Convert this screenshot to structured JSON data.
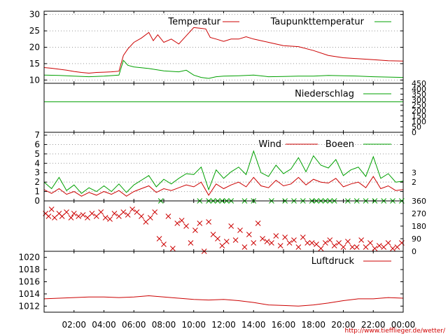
{
  "colors": {
    "red": "#cc0000",
    "green": "#00a000",
    "grid": "#999999",
    "url": "#d00000"
  },
  "chart_data": {
    "x_ticks": [
      "02:00",
      "04:00",
      "06:00",
      "08:00",
      "10:00",
      "12:00",
      "14:00",
      "16:00",
      "18:00",
      "20:00",
      "22:00",
      "00:00"
    ],
    "source_url": "http://www.tiefflieger.de/wetter/",
    "panels": [
      {
        "id": "temperature",
        "type": "line",
        "y_ticks": [
          10,
          15,
          20,
          25,
          30
        ],
        "ylim": [
          9,
          31
        ],
        "grid": true,
        "series": [
          {
            "name": "Temperatur",
            "color": "#cc0000",
            "x": [
              0,
              0.5,
              1,
              1.5,
              2,
              2.5,
              3,
              3.5,
              4,
              4.5,
              5,
              5.3,
              5.6,
              6,
              6.5,
              7,
              7.3,
              7.6,
              8,
              8.5,
              9,
              9.5,
              10,
              10.4,
              10.8,
              11.1,
              11.5,
              12,
              12.5,
              13,
              13.5,
              14,
              14.5,
              15,
              16,
              17,
              18,
              19,
              20,
              21,
              22,
              23,
              24
            ],
            "y": [
              13.8,
              13.6,
              13.3,
              13,
              12.6,
              12.3,
              12.1,
              12.3,
              12.4,
              12.5,
              12.7,
              17.5,
              19.5,
              21.5,
              22.8,
              24.5,
              22,
              23.8,
              21.5,
              22.5,
              21,
              23.5,
              26,
              25.8,
              25.6,
              23,
              22.5,
              21.8,
              22.5,
              22.5,
              23.2,
              22.5,
              22,
              21.5,
              20.5,
              20.2,
              19,
              17.5,
              16.8,
              16.5,
              16.2,
              15.9,
              15.8
            ]
          },
          {
            "name": "Taupunkttemperatur",
            "color": "#00a000",
            "x": [
              0,
              1,
              2,
              3,
              4,
              5,
              5.3,
              5.6,
              6,
              7,
              8,
              9,
              9.5,
              10,
              10.5,
              11,
              11.5,
              12,
              13,
              14,
              15,
              16,
              17,
              18,
              19,
              20,
              21,
              22,
              23,
              24
            ],
            "y": [
              11.5,
              11.4,
              11.2,
              11,
              11.2,
              11.5,
              16,
              14.5,
              14,
              13.5,
              12.8,
              12.5,
              13,
              11.5,
              10.8,
              10.5,
              11,
              11.2,
              11.3,
              11.5,
              11,
              11.1,
              11.2,
              11.2,
              11.4,
              11.3,
              11.2,
              11,
              10.9,
              10.8
            ]
          }
        ]
      },
      {
        "id": "precipitation",
        "type": "line",
        "y_ticks_right": [
          0,
          50,
          100,
          150,
          200,
          250,
          300,
          350,
          400,
          450
        ],
        "ylim": [
          0,
          450
        ],
        "series": [
          {
            "name": "Niederschlag",
            "color": "#00a000",
            "x": [
              0,
              24
            ],
            "y": [
              280,
              280
            ]
          }
        ]
      },
      {
        "id": "wind",
        "type": "line",
        "y_ticks": [
          0,
          1,
          2,
          3,
          4,
          5,
          6,
          7
        ],
        "y_ticks_right": [
          2,
          3
        ],
        "ylim": [
          0,
          7.3
        ],
        "grid": true,
        "series": [
          {
            "name": "Wind",
            "color": "#cc0000",
            "x": [
              0,
              0.5,
              1,
              1.5,
              2,
              2.5,
              3,
              3.5,
              4,
              4.5,
              5,
              5.5,
              6,
              6.5,
              7,
              7.5,
              8,
              8.5,
              9,
              9.5,
              10,
              10.5,
              11,
              11.5,
              12,
              12.5,
              13,
              13.5,
              14,
              14.5,
              15,
              15.5,
              16,
              16.5,
              17,
              17.5,
              18,
              18.5,
              19,
              19.5,
              20,
              20.5,
              21,
              21.5,
              22,
              22.5,
              23,
              23.5,
              24
            ],
            "y": [
              1.2,
              0.8,
              1.3,
              0.7,
              1.0,
              0.5,
              0.9,
              0.6,
              1.0,
              0.7,
              1.1,
              0.5,
              1.0,
              1.3,
              1.6,
              0.9,
              1.3,
              1.1,
              1.4,
              1.7,
              1.5,
              2.0,
              0.6,
              1.8,
              1.3,
              1.7,
              2.0,
              1.5,
              2.5,
              1.6,
              1.4,
              2.2,
              1.6,
              1.8,
              2.5,
              1.7,
              2.3,
              2.0,
              1.9,
              2.4,
              1.5,
              1.8,
              2.0,
              1.4,
              2.6,
              1.3,
              1.6,
              1.1,
              1.2
            ]
          },
          {
            "name": "Boeen",
            "color": "#00a000",
            "x": [
              0,
              0.5,
              1,
              1.5,
              2,
              2.5,
              3,
              3.5,
              4,
              4.5,
              5,
              5.5,
              6,
              6.5,
              7,
              7.5,
              8,
              8.5,
              9,
              9.5,
              10,
              10.5,
              11,
              11.5,
              12,
              12.5,
              13,
              13.5,
              14,
              14.5,
              15,
              15.5,
              16,
              16.5,
              17,
              17.5,
              18,
              18.5,
              19,
              19.5,
              20,
              20.5,
              21,
              21.5,
              22,
              22.5,
              23,
              23.5,
              24
            ],
            "y": [
              2.0,
              1.3,
              2.5,
              1.1,
              1.7,
              0.8,
              1.4,
              1.0,
              1.6,
              1.0,
              1.8,
              0.9,
              1.7,
              2.2,
              2.7,
              1.5,
              2.3,
              1.8,
              2.4,
              2.9,
              2.8,
              3.6,
              1.2,
              3.3,
              2.4,
              3.1,
              3.6,
              2.8,
              5.3,
              3.0,
              2.6,
              3.8,
              2.9,
              3.4,
              4.6,
              3.1,
              4.8,
              3.8,
              3.5,
              4.4,
              2.7,
              3.3,
              3.6,
              2.6,
              4.7,
              2.4,
              2.9,
              2.0,
              2.1
            ]
          }
        ]
      },
      {
        "id": "wind_direction",
        "type": "scatter",
        "y_ticks_right": [
          0,
          90,
          180,
          270,
          360
        ],
        "ylim": [
          0,
          360
        ],
        "series": [
          {
            "name": "",
            "color": "#cc0000",
            "marker": "x",
            "x": [
              0.1,
              0.3,
              0.5,
              0.7,
              1.0,
              1.2,
              1.5,
              1.8,
              2.0,
              2.3,
              2.6,
              2.9,
              3.2,
              3.5,
              3.8,
              4.1,
              4.4,
              4.7,
              5.0,
              5.3,
              5.6,
              5.9,
              6.2,
              6.5,
              6.8,
              7.1,
              7.4,
              7.7,
              8.0,
              8.3,
              8.6,
              8.9,
              9.2,
              9.5,
              9.8,
              10.1,
              10.4,
              10.7,
              11.0,
              11.3,
              11.6,
              11.9,
              12.2,
              12.5,
              12.8,
              13.1,
              13.4,
              13.7,
              14.0,
              14.3,
              14.6,
              14.9,
              15.2,
              15.5,
              15.8,
              16.1,
              16.4,
              16.7,
              17.0,
              17.3,
              17.6,
              17.9,
              18.2,
              18.5,
              18.8,
              19.1,
              19.4,
              19.7,
              20.0,
              20.3,
              20.6,
              20.9,
              21.2,
              21.5,
              21.8,
              22.1,
              22.4,
              22.7,
              23.0,
              23.3,
              23.6,
              23.9
            ],
            "y": [
              270,
              250,
              300,
              240,
              270,
              250,
              280,
              240,
              270,
              250,
              260,
              240,
              270,
              250,
              280,
              240,
              230,
              270,
              250,
              280,
              260,
              300,
              280,
              250,
              210,
              240,
              280,
              90,
              50,
              250,
              20,
              200,
              220,
              180,
              60,
              150,
              200,
              0,
              210,
              120,
              90,
              40,
              70,
              180,
              80,
              150,
              30,
              120,
              60,
              200,
              90,
              70,
              60,
              110,
              40,
              100,
              60,
              80,
              30,
              100,
              60,
              60,
              50,
              20,
              60,
              80,
              40,
              60,
              30,
              70,
              30,
              30,
              80,
              30,
              60,
              20,
              40,
              30,
              60,
              20,
              30,
              60
            ]
          },
          {
            "name": "",
            "color": "#00a000",
            "marker": "x",
            "x": [
              7.8,
              10.4,
              11.0,
              11.3,
              11.6,
              11.9,
              12.2,
              12.5,
              13.4,
              14.0,
              15.2,
              16.1,
              16.7,
              17.3,
              17.9,
              18.2,
              18.5,
              18.8,
              19.1,
              19.4,
              20.3,
              20.9,
              21.5,
              22.1,
              22.7,
              23.3,
              23.9
            ],
            "y": [
              360,
              360,
              360,
              360,
              360,
              360,
              360,
              360,
              360,
              360,
              360,
              360,
              360,
              360,
              360,
              360,
              360,
              360,
              360,
              360,
              360,
              360,
              360,
              360,
              360,
              360,
              360
            ]
          }
        ]
      },
      {
        "id": "pressure",
        "type": "line",
        "y_ticks": [
          1012,
          1014,
          1016,
          1018,
          1020
        ],
        "ylim": [
          1011,
          1021
        ],
        "series": [
          {
            "name": "Luftdruck",
            "color": "#cc0000",
            "x": [
              0,
              1,
              2,
              3,
              4,
              5,
              6,
              7,
              8,
              9,
              10,
              11,
              12,
              13,
              14,
              15,
              16,
              17,
              18,
              19,
              20,
              21,
              22,
              23,
              24
            ],
            "y": [
              1013.2,
              1013.3,
              1013.4,
              1013.5,
              1013.5,
              1013.4,
              1013.5,
              1013.7,
              1013.5,
              1013.3,
              1013.1,
              1013.0,
              1013.1,
              1012.9,
              1012.6,
              1012.2,
              1012.1,
              1012.0,
              1012.2,
              1012.5,
              1012.9,
              1013.2,
              1013.2,
              1013.4,
              1013.3
            ]
          }
        ]
      }
    ]
  }
}
